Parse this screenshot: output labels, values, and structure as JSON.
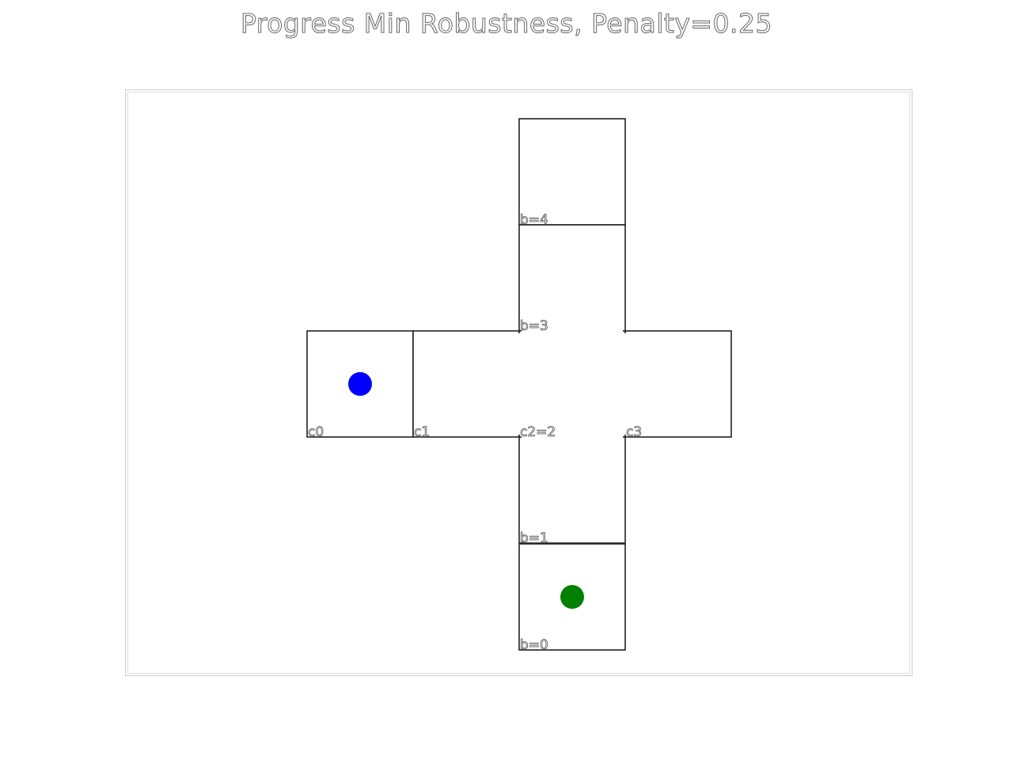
{
  "title": "Progress Min Robustness, Penalty=0.25",
  "cells": [
    {
      "id": "c0",
      "label": "c0"
    },
    {
      "id": "c1",
      "label": "c1"
    },
    {
      "id": "c2",
      "label": "c2=2"
    },
    {
      "id": "c3",
      "label": "c3"
    },
    {
      "id": "b0",
      "label": "b=0"
    },
    {
      "id": "b1",
      "label": "b=1"
    },
    {
      "id": "b3",
      "label": "b=3"
    },
    {
      "id": "b4",
      "label": "b=4"
    }
  ],
  "agents": [
    {
      "name": "blue-agent",
      "color": "#0000ff",
      "cell": "c0"
    },
    {
      "name": "green-agent",
      "color": "#008000",
      "cell": "b0"
    }
  ]
}
